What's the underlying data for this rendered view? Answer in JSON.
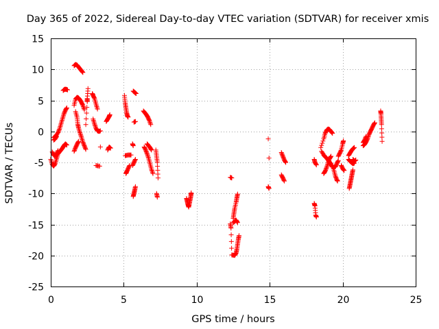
{
  "chart_data": {
    "type": "scatter",
    "title": "Day 365 of 2022, Sidereal Day-to-day VTEC variation (SDTVAR) for receiver xmis",
    "xlabel": "GPS time / hours",
    "ylabel": "SDTVAR / TECUs",
    "xlim": [
      0,
      25
    ],
    "ylim": [
      -25,
      15
    ],
    "xticks": [
      0,
      5,
      10,
      15,
      20,
      25
    ],
    "yticks": [
      -25,
      -20,
      -15,
      -10,
      -5,
      0,
      5,
      10,
      15
    ],
    "xtick_labels": [
      "0",
      "5",
      "10",
      "15",
      "20",
      "25"
    ],
    "ytick_labels": [
      "-25",
      "-20",
      "-15",
      "-10",
      "-5",
      "0",
      "5",
      "10",
      "15"
    ],
    "grid": true,
    "marker": "+",
    "color": "#ff0000",
    "series": [
      {
        "name": "SDTVAR",
        "segments": [
          [
            [
              0.0,
              -4.5
            ],
            [
              0.1,
              -5.3
            ],
            [
              0.2,
              -5.6
            ],
            [
              0.3,
              -5.2
            ],
            [
              0.4,
              -4.4
            ],
            [
              0.5,
              -3.6
            ],
            [
              0.6,
              -3.3
            ],
            [
              0.7,
              -3.0
            ],
            [
              0.8,
              -2.7
            ],
            [
              0.9,
              -2.3
            ],
            [
              1.0,
              -2.0
            ],
            [
              1.1,
              -2.2
            ]
          ],
          [
            [
              0.1,
              -3.3
            ],
            [
              0.2,
              -3.8
            ],
            [
              0.3,
              -4.0
            ],
            [
              0.4,
              -3.6
            ],
            [
              0.5,
              -3.1
            ]
          ],
          [
            [
              0.2,
              -1.0
            ],
            [
              0.35,
              -0.7
            ],
            [
              0.5,
              -0.2
            ],
            [
              0.6,
              0.4
            ],
            [
              0.7,
              1.2
            ],
            [
              0.8,
              2.0
            ],
            [
              0.9,
              2.8
            ],
            [
              1.0,
              3.4
            ],
            [
              1.1,
              3.8
            ]
          ],
          [
            [
              0.2,
              -1.4
            ],
            [
              0.3,
              -1.2
            ],
            [
              0.4,
              -0.8
            ]
          ],
          [
            [
              0.85,
              6.6
            ],
            [
              0.95,
              6.8
            ],
            [
              1.05,
              6.8
            ],
            [
              1.15,
              6.7
            ]
          ],
          [
            [
              1.6,
              10.6
            ],
            [
              1.7,
              10.8
            ],
            [
              1.8,
              10.7
            ],
            [
              1.9,
              10.4
            ],
            [
              2.0,
              10.1
            ],
            [
              2.1,
              9.8
            ],
            [
              2.2,
              9.5
            ]
          ],
          [
            [
              1.6,
              4.2
            ],
            [
              1.7,
              5.2
            ],
            [
              1.8,
              5.5
            ],
            [
              1.9,
              5.4
            ],
            [
              2.0,
              5.1
            ],
            [
              2.1,
              4.7
            ],
            [
              2.2,
              4.2
            ],
            [
              2.3,
              3.5
            ]
          ],
          [
            [
              1.7,
              3.2
            ],
            [
              1.8,
              2.3
            ],
            [
              1.85,
              1.2
            ],
            [
              1.9,
              0.6
            ],
            [
              2.0,
              -0.2
            ],
            [
              2.1,
              -0.9
            ],
            [
              2.2,
              -1.7
            ],
            [
              2.3,
              -2.3
            ],
            [
              2.4,
              -2.9
            ]
          ],
          [
            [
              1.6,
              -3.2
            ],
            [
              1.7,
              -2.6
            ],
            [
              1.8,
              -2.1
            ],
            [
              1.9,
              -1.6
            ]
          ],
          [
            [
              2.4,
              1.1
            ],
            [
              2.5,
              4.8
            ],
            [
              2.5,
              5.3
            ],
            [
              2.55,
              6.9
            ]
          ],
          [
            [
              2.85,
              6.1
            ],
            [
              2.9,
              5.8
            ],
            [
              3.0,
              5.3
            ],
            [
              3.1,
              4.4
            ],
            [
              3.2,
              3.6
            ]
          ],
          [
            [
              2.9,
              2.0
            ],
            [
              3.0,
              1.2
            ],
            [
              3.1,
              0.5
            ],
            [
              3.2,
              0.1
            ],
            [
              3.3,
              0.0
            ],
            [
              3.4,
              0.1
            ]
          ],
          [
            [
              3.1,
              -5.5
            ],
            [
              3.35,
              -5.6
            ]
          ],
          [
            [
              3.4,
              -2.5
            ]
          ],
          [
            [
              3.9,
              -3.0
            ],
            [
              4.0,
              -2.5
            ],
            [
              4.1,
              -2.7
            ]
          ],
          [
            [
              3.8,
              1.6
            ],
            [
              3.9,
              2.0
            ],
            [
              4.0,
              2.4
            ],
            [
              4.05,
              2.7
            ]
          ],
          [
            [
              5.05,
              5.8
            ],
            [
              5.1,
              4.6
            ],
            [
              5.15,
              3.8
            ],
            [
              5.2,
              3.0
            ],
            [
              5.25,
              2.5
            ],
            [
              5.3,
              2.3
            ]
          ],
          [
            [
              5.15,
              -6.8
            ],
            [
              5.2,
              -6.5
            ],
            [
              5.3,
              -6.0
            ],
            [
              5.4,
              -5.5
            ]
          ],
          [
            [
              5.1,
              -3.9
            ],
            [
              5.3,
              -3.8
            ],
            [
              5.5,
              -3.8
            ]
          ],
          [
            [
              5.65,
              6.5
            ],
            [
              5.75,
              6.3
            ],
            [
              5.85,
              6.1
            ]
          ],
          [
            [
              5.65,
              -10.5
            ],
            [
              5.7,
              -10.0
            ],
            [
              5.75,
              -9.5
            ],
            [
              5.8,
              -8.9
            ]
          ],
          [
            [
              5.6,
              -5.5
            ],
            [
              5.7,
              -5.0
            ],
            [
              5.8,
              -4.5
            ]
          ],
          [
            [
              5.7,
              1.5
            ],
            [
              5.8,
              1.6
            ]
          ],
          [
            [
              5.6,
              -2.0
            ],
            [
              5.65,
              -2.3
            ]
          ],
          [
            [
              6.35,
              3.3
            ],
            [
              6.45,
              3.0
            ],
            [
              6.55,
              2.7
            ],
            [
              6.65,
              2.3
            ],
            [
              6.75,
              1.8
            ],
            [
              6.85,
              1.1
            ]
          ],
          [
            [
              6.4,
              -2.5
            ],
            [
              6.5,
              -3.0
            ],
            [
              6.6,
              -3.6
            ],
            [
              6.7,
              -4.3
            ],
            [
              6.8,
              -5.2
            ],
            [
              6.9,
              -6.1
            ],
            [
              7.0,
              -6.8
            ]
          ],
          [
            [
              6.6,
              -2.0
            ],
            [
              6.7,
              -2.3
            ],
            [
              6.8,
              -2.6
            ],
            [
              6.9,
              -3.0
            ]
          ],
          [
            [
              7.2,
              -3.0
            ],
            [
              7.25,
              -4.0
            ],
            [
              7.3,
              -5.0
            ],
            [
              7.35,
              -7.5
            ]
          ],
          [
            [
              7.25,
              -10.0
            ],
            [
              7.3,
              -10.6
            ]
          ],
          [
            [
              9.3,
              -10.8
            ],
            [
              9.35,
              -11.3
            ],
            [
              9.4,
              -11.8
            ],
            [
              9.45,
              -12.2
            ],
            [
              9.5,
              -11.6
            ],
            [
              9.55,
              -11.0
            ],
            [
              9.6,
              -10.4
            ],
            [
              9.62,
              -9.9
            ]
          ],
          [
            [
              12.3,
              -7.4
            ],
            [
              12.4,
              -7.5
            ]
          ],
          [
            [
              12.3,
              -14.9
            ],
            [
              12.35,
              -15.6
            ],
            [
              12.4,
              -19.9
            ],
            [
              12.6,
              -20.0
            ],
            [
              12.7,
              -19.6
            ],
            [
              12.75,
              -19.0
            ],
            [
              12.8,
              -18.2
            ],
            [
              12.85,
              -17.4
            ],
            [
              12.9,
              -16.8
            ]
          ],
          [
            [
              12.5,
              -14.7
            ],
            [
              12.6,
              -14.5
            ],
            [
              12.7,
              -14.3
            ],
            [
              12.8,
              -14.7
            ]
          ],
          [
            [
              12.5,
              -14.0
            ],
            [
              12.55,
              -13.2
            ],
            [
              12.6,
              -12.4
            ],
            [
              12.7,
              -11.4
            ],
            [
              12.75,
              -10.7
            ],
            [
              12.8,
              -10.1
            ]
          ],
          [
            [
              14.9,
              -1.2
            ]
          ],
          [
            [
              14.95,
              -4.3
            ]
          ],
          [
            [
              14.9,
              -8.9
            ],
            [
              14.95,
              -9.2
            ]
          ],
          [
            [
              15.8,
              -3.4
            ],
            [
              15.9,
              -4.0
            ],
            [
              16.0,
              -4.6
            ],
            [
              16.1,
              -5.0
            ]
          ],
          [
            [
              15.8,
              -7.0
            ],
            [
              15.9,
              -7.5
            ],
            [
              16.0,
              -8.0
            ]
          ],
          [
            [
              18.05,
              -4.5
            ],
            [
              18.1,
              -5.0
            ],
            [
              18.2,
              -5.4
            ]
          ],
          [
            [
              18.05,
              -11.6
            ],
            [
              18.1,
              -12.0
            ],
            [
              18.15,
              -13.5
            ],
            [
              18.2,
              -13.8
            ]
          ],
          [
            [
              18.5,
              -2.6
            ],
            [
              18.7,
              -1.2
            ],
            [
              18.8,
              -0.3
            ],
            [
              18.9,
              0.2
            ],
            [
              19.0,
              0.4
            ],
            [
              19.1,
              0.3
            ],
            [
              19.2,
              0.0
            ],
            [
              19.3,
              -0.3
            ]
          ],
          [
            [
              18.55,
              -3.2
            ],
            [
              18.7,
              -3.8
            ],
            [
              18.8,
              -4.1
            ],
            [
              18.9,
              -4.3
            ],
            [
              19.0,
              -4.6
            ],
            [
              19.1,
              -5.0
            ],
            [
              19.2,
              -5.4
            ],
            [
              19.3,
              -5.7
            ],
            [
              19.4,
              -5.8
            ],
            [
              19.5,
              -5.7
            ],
            [
              19.6,
              -5.2
            ],
            [
              19.7,
              -4.7
            ]
          ],
          [
            [
              18.7,
              -6.8
            ],
            [
              18.8,
              -6.4
            ],
            [
              18.9,
              -5.8
            ],
            [
              19.0,
              -5.1
            ],
            [
              19.1,
              -4.4
            ],
            [
              19.2,
              -4.0
            ]
          ],
          [
            [
              19.0,
              -4.6
            ],
            [
              19.2,
              -5.2
            ],
            [
              19.4,
              -6.3
            ],
            [
              19.5,
              -7.2
            ],
            [
              19.6,
              -7.8
            ],
            [
              19.65,
              -8.0
            ]
          ],
          [
            [
              19.7,
              -4.0
            ],
            [
              19.8,
              -3.5
            ],
            [
              19.9,
              -3.0
            ],
            [
              20.0,
              -2.0
            ],
            [
              20.05,
              -1.5
            ]
          ],
          [
            [
              19.9,
              -5.5
            ],
            [
              20.0,
              -6.0
            ],
            [
              20.1,
              -6.3
            ]
          ],
          [
            [
              20.4,
              -4.5
            ],
            [
              20.5,
              -4.8
            ],
            [
              20.6,
              -5.0
            ],
            [
              20.7,
              -5.2
            ],
            [
              20.8,
              -5.1
            ]
          ],
          [
            [
              20.4,
              -3.9
            ],
            [
              20.5,
              -3.5
            ],
            [
              20.6,
              -3.1
            ],
            [
              20.7,
              -2.8
            ],
            [
              20.8,
              -2.6
            ]
          ],
          [
            [
              20.45,
              -9.2
            ],
            [
              20.5,
              -8.6
            ],
            [
              20.55,
              -8.0
            ],
            [
              20.6,
              -7.4
            ],
            [
              20.65,
              -6.8
            ],
            [
              20.7,
              -6.2
            ]
          ],
          [
            [
              20.7,
              -4.5
            ],
            [
              20.8,
              -4.8
            ],
            [
              20.9,
              -4.6
            ]
          ],
          [
            [
              21.4,
              -2.3
            ],
            [
              21.5,
              -2.1
            ],
            [
              21.6,
              -1.7
            ],
            [
              21.7,
              -1.2
            ],
            [
              21.8,
              -0.5
            ],
            [
              21.9,
              0.0
            ],
            [
              22.0,
              0.5
            ],
            [
              22.1,
              1.0
            ],
            [
              22.2,
              1.4
            ]
          ],
          [
            [
              21.4,
              -1.8
            ],
            [
              21.5,
              -1.4
            ],
            [
              21.6,
              -0.8
            ]
          ],
          [
            [
              22.6,
              3.3
            ],
            [
              22.62,
              2.9
            ],
            [
              22.64,
              2.0
            ],
            [
              22.66,
              1.1
            ],
            [
              22.7,
              -1.6
            ]
          ]
        ]
      }
    ]
  }
}
